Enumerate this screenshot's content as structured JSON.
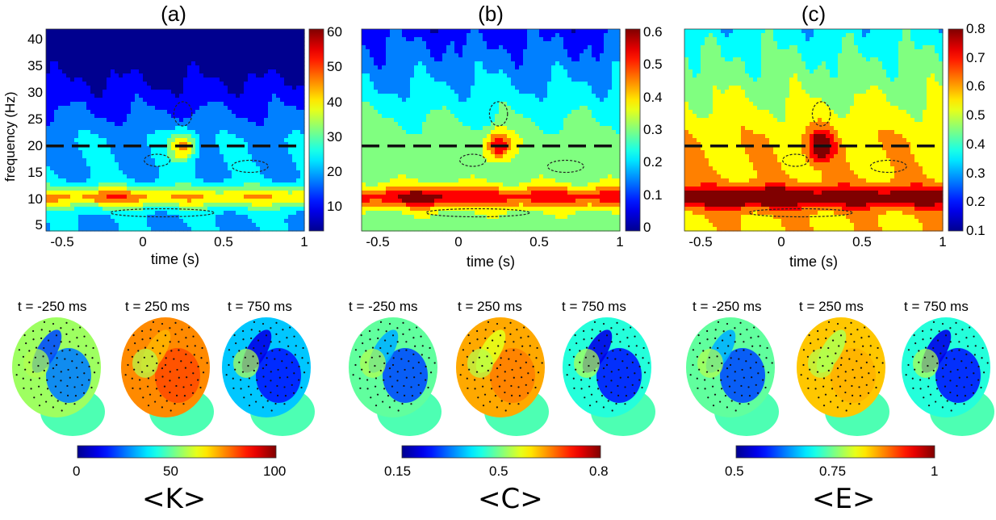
{
  "panels": [
    {
      "label": "(a)"
    },
    {
      "label": "(b)"
    },
    {
      "label": "(c)"
    }
  ],
  "bottom_labels": [
    "<K>",
    "<C>",
    "<E>"
  ],
  "colors": {
    "jet": [
      "#00008f",
      "#0000ff",
      "#0080ff",
      "#00ffff",
      "#80ff80",
      "#ffff00",
      "#ff8000",
      "#ff0000",
      "#800000"
    ],
    "dashed_line": "#111111"
  },
  "chart_data": [
    {
      "type": "heatmap",
      "title": "(a)",
      "xlabel": "time (s)",
      "ylabel": "frequency (Hz)",
      "xlim": [
        -0.6,
        1.0
      ],
      "ylim": [
        4,
        42
      ],
      "xticks": [
        "-0.5",
        "0",
        "0.5",
        "1"
      ],
      "yticks": [
        "5",
        "10",
        "15",
        "20",
        "25",
        "30",
        "35",
        "40"
      ],
      "colorbar": {
        "min": 3,
        "max": 61,
        "ticks": [
          "10",
          "20",
          "30",
          "40",
          "50",
          "60"
        ]
      },
      "reference_line_hz": 20
    },
    {
      "type": "heatmap",
      "title": "(b)",
      "xlabel": "time (s)",
      "ylabel": "",
      "xlim": [
        -0.6,
        1.0
      ],
      "ylim": [
        4,
        42
      ],
      "xticks": [
        "-0.5",
        "0",
        "0.5",
        "1"
      ],
      "yticks": [],
      "colorbar": {
        "min": -0.01,
        "max": 0.61,
        "ticks": [
          "0",
          "0.1",
          "0.2",
          "0.3",
          "0.4",
          "0.5",
          "0.6"
        ]
      },
      "reference_line_hz": 20
    },
    {
      "type": "heatmap",
      "title": "(c)",
      "xlabel": "time (s)",
      "ylabel": "",
      "xlim": [
        -0.6,
        1.0
      ],
      "ylim": [
        4,
        42
      ],
      "xticks": [
        "-0.5",
        "0",
        "0.5",
        "1"
      ],
      "yticks": [],
      "colorbar": {
        "min": 0.1,
        "max": 0.8,
        "ticks": [
          "0.1",
          "0.2",
          "0.3",
          "0.4",
          "0.5",
          "0.6",
          "0.7",
          "0.8"
        ]
      },
      "reference_line_hz": 20
    }
  ],
  "topographies": [
    {
      "times": [
        "t = -250 ms",
        "t = 250 ms",
        "t = 750 ms"
      ],
      "colorbar": {
        "ticks": [
          "0",
          "50",
          "100"
        ],
        "min": 0,
        "max": 100
      }
    },
    {
      "times": [
        "t = -250 ms",
        "t = 250 ms",
        "t = 750 ms"
      ],
      "colorbar": {
        "ticks": [
          "0.15",
          "0.5",
          "0.8"
        ],
        "min": 0.15,
        "max": 0.8
      }
    },
    {
      "times": [
        "t = -250 ms",
        "t = 250 ms",
        "t = 750 ms"
      ],
      "colorbar": {
        "ticks": [
          "0.5",
          "0.75",
          "1"
        ],
        "min": 0.5,
        "max": 1
      }
    }
  ]
}
